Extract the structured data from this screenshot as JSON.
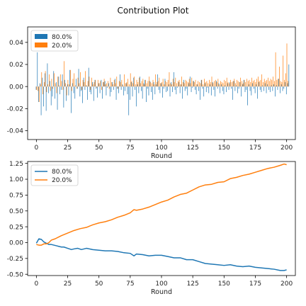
{
  "figure": {
    "title": "Contribution Plot"
  },
  "colors": {
    "series_a": "#1f77b4",
    "series_b": "#ff7f0e",
    "axis": "#000000"
  },
  "chart_data": [
    {
      "type": "bar",
      "xlabel": "Round",
      "ylabel": "",
      "xlim": [
        -7,
        207
      ],
      "ylim": [
        -0.048,
        0.054
      ],
      "xticks": [
        0,
        25,
        50,
        75,
        100,
        125,
        150,
        175,
        200
      ],
      "xtick_labels": [
        "0",
        "25",
        "50",
        "75",
        "100",
        "125",
        "150",
        "175",
        "200"
      ],
      "yticks": [
        -0.04,
        -0.02,
        0.0,
        0.02,
        0.04
      ],
      "ytick_labels": [
        "-0.04",
        "-0.02",
        "0.00",
        "0.02",
        "0.04"
      ],
      "legend": {
        "position": "top-left",
        "style": "patch"
      },
      "series": [
        {
          "name": "80.0%",
          "color": "#1f77b4",
          "values": [
            -0.003,
            0.031,
            -0.014,
            0.003,
            -0.026,
            0.008,
            -0.018,
            0.012,
            -0.022,
            0.021,
            -0.006,
            0.005,
            -0.017,
            -0.009,
            0.014,
            -0.011,
            0.004,
            -0.021,
            0.009,
            -0.007,
            -0.003,
            0.011,
            -0.019,
            0.006,
            -0.013,
            0.002,
            -0.008,
            0.015,
            -0.024,
            0.003,
            -0.006,
            -0.011,
            0.007,
            -0.002,
            0.016,
            -0.009,
            -0.004,
            -0.015,
            0.008,
            -0.003,
            0.001,
            -0.012,
            0.017,
            -0.005,
            -0.007,
            0.004,
            -0.013,
            0.006,
            -0.002,
            -0.01,
            0.003,
            -0.006,
            0.006,
            -0.011,
            0.004,
            0.005,
            -0.008,
            -0.001,
            0.003,
            -0.009,
            -0.005,
            0.004,
            -0.003,
            0.007,
            -0.012,
            -0.002,
            -0.006,
            0.011,
            -0.003,
            0.002,
            -0.008,
            -0.004,
            0.003,
            -0.007,
            -0.026,
            -0.012,
            0.004,
            -0.009,
            0.008,
            -0.003,
            -0.018,
            0.002,
            -0.006,
            0.009,
            -0.004,
            -0.011,
            0.003,
            0.006,
            -0.014,
            -0.002,
            -0.008,
            0.005,
            -0.005,
            -0.012,
            0.004,
            -0.007,
            0.002,
            0.011,
            -0.003,
            -0.006,
            0.003,
            -0.01,
            -0.002,
            0.007,
            -0.005,
            -0.004,
            0.002,
            -0.009,
            0.004,
            -0.005,
            0.013,
            -0.003,
            -0.007,
            -0.001,
            0.004,
            -0.006,
            0.002,
            -0.011,
            0.006,
            -0.004,
            -0.002,
            -0.008,
            0.003,
            0.009,
            -0.005,
            -0.001,
            0.005,
            -0.003,
            -0.007,
            0.002,
            -0.004,
            -0.012,
            0.006,
            -0.002,
            -0.009,
            0.003,
            -0.005,
            -0.001,
            -0.006,
            0.002,
            -0.008,
            0.004,
            -0.003,
            -0.009,
            0.005,
            -0.002,
            0.003,
            -0.006,
            0.002,
            -0.004,
            -0.007,
            0.001,
            -0.005,
            0.003,
            -0.003,
            0.004,
            -0.002,
            -0.012,
            0.005,
            -0.004,
            0.001,
            -0.006,
            -0.002,
            0.004,
            -0.009,
            0.002,
            0.006,
            -0.005,
            -0.003,
            -0.017,
            0.002,
            -0.004,
            -0.008,
            0.003,
            -0.002,
            -0.006,
            0.002,
            -0.011,
            0.004,
            -0.003,
            -0.005,
            0.001,
            -0.004,
            0.003,
            -0.006,
            0.002,
            -0.003,
            -0.005,
            0.001,
            -0.004,
            0.002,
            -0.009,
            0.001,
            -0.003,
            0.007,
            -0.006,
            0.002,
            -0.004,
            -0.002,
            0.004,
            -0.007,
            0.003,
            0.02
          ]
        },
        {
          "name": "20.0%",
          "color": "#ff7f0e",
          "values": [
            -0.003,
            -0.004,
            -0.014,
            0.002,
            0.013,
            -0.007,
            0.004,
            0.014,
            -0.005,
            0.002,
            0.011,
            -0.004,
            0.007,
            -0.002,
            0.012,
            0.003,
            -0.006,
            0.009,
            0.001,
            0.011,
            0.005,
            -0.003,
            0.023,
            0.003,
            -0.008,
            0.006,
            0.002,
            0.015,
            -0.004,
            0.007,
            0.012,
            0.001,
            -0.002,
            0.008,
            0.003,
            0.013,
            -0.003,
            0.006,
            0.004,
            0.014,
            0.001,
            0.005,
            0.009,
            -0.003,
            0.008,
            0.002,
            0.004,
            0.006,
            -0.001,
            0.006,
            0.003,
            0.005,
            -0.003,
            0.004,
            0.007,
            0.002,
            0.003,
            0.005,
            -0.002,
            0.008,
            0.004,
            0.002,
            0.006,
            0.003,
            0.009,
            -0.002,
            0.005,
            0.004,
            0.006,
            0.001,
            0.011,
            0.003,
            0.004,
            0.007,
            0.002,
            0.012,
            0.005,
            0.003,
            0.009,
            0.002,
            0.006,
            0.004,
            0.008,
            0.003,
            0.005,
            0.007,
            0.002,
            0.006,
            0.003,
            0.005,
            0.009,
            0.004,
            0.003,
            0.006,
            0.002,
            0.011,
            0.004,
            0.005,
            0.008,
            0.003,
            0.004,
            0.007,
            0.002,
            0.005,
            0.004,
            0.006,
            0.013,
            0.003,
            0.002,
            0.007,
            0.004,
            0.008,
            0.003,
            0.005,
            0.006,
            0.002,
            0.009,
            0.004,
            0.003,
            0.006,
            0.005,
            0.004,
            0.007,
            0.003,
            0.008,
            0.005,
            0.004,
            0.006,
            0.002,
            0.005,
            0.004,
            0.003,
            0.006,
            0.002,
            0.007,
            0.004,
            0.005,
            0.003,
            0.006,
            0.004,
            0.009,
            0.003,
            0.005,
            0.006,
            0.004,
            0.007,
            0.002,
            0.005,
            0.004,
            0.003,
            0.006,
            0.005,
            0.008,
            0.004,
            0.003,
            0.006,
            0.004,
            0.005,
            0.007,
            0.003,
            0.006,
            0.005,
            0.004,
            0.008,
            0.005,
            0.003,
            0.006,
            0.004,
            0.007,
            0.005,
            0.006,
            0.004,
            0.008,
            0.005,
            0.006,
            0.004,
            0.007,
            0.009,
            0.005,
            0.006,
            0.011,
            0.004,
            0.007,
            0.005,
            0.006,
            0.008,
            0.005,
            0.007,
            0.006,
            0.009,
            0.005,
            0.031,
            0.006,
            0.007,
            0.018,
            0.005,
            0.004,
            0.028,
            0.006,
            0.012,
            0.039,
            0.005
          ]
        }
      ]
    },
    {
      "type": "line",
      "xlabel": "Round",
      "ylabel": "",
      "xlim": [
        -7,
        207
      ],
      "ylim": [
        -0.52,
        1.28
      ],
      "xticks": [
        0,
        25,
        50,
        75,
        100,
        125,
        150,
        175,
        200
      ],
      "xtick_labels": [
        "0",
        "25",
        "50",
        "75",
        "100",
        "125",
        "150",
        "175",
        "200"
      ],
      "yticks": [
        -0.5,
        -0.25,
        0.0,
        0.25,
        0.5,
        0.75,
        1.0,
        1.25
      ],
      "ytick_labels": [
        "-0.50",
        "-0.25",
        "0.00",
        "0.25",
        "0.50",
        "0.75",
        "1.00",
        "1.25"
      ],
      "legend": {
        "position": "top-left",
        "style": "line"
      },
      "series": [
        {
          "name": "80.0%",
          "color": "#1f77b4",
          "x": [
            0,
            2,
            4,
            6,
            8,
            10,
            12,
            14,
            16,
            18,
            20,
            22,
            25,
            28,
            30,
            33,
            36,
            40,
            45,
            50,
            55,
            60,
            65,
            70,
            75,
            78,
            80,
            85,
            90,
            95,
            100,
            105,
            110,
            115,
            120,
            125,
            130,
            135,
            140,
            145,
            150,
            155,
            160,
            165,
            170,
            175,
            180,
            185,
            190,
            195,
            198,
            200
          ],
          "values": [
            -0.01,
            0.06,
            0.05,
            0.01,
            -0.01,
            -0.03,
            -0.03,
            -0.04,
            -0.05,
            -0.06,
            -0.07,
            -0.07,
            -0.09,
            -0.11,
            -0.1,
            -0.09,
            -0.11,
            -0.09,
            -0.11,
            -0.12,
            -0.13,
            -0.13,
            -0.14,
            -0.16,
            -0.17,
            -0.21,
            -0.18,
            -0.19,
            -0.21,
            -0.2,
            -0.2,
            -0.22,
            -0.24,
            -0.24,
            -0.27,
            -0.27,
            -0.3,
            -0.33,
            -0.34,
            -0.35,
            -0.36,
            -0.35,
            -0.37,
            -0.38,
            -0.37,
            -0.39,
            -0.4,
            -0.41,
            -0.42,
            -0.44,
            -0.44,
            -0.43
          ]
        },
        {
          "name": "20.0%",
          "color": "#ff7f0e",
          "x": [
            0,
            2,
            4,
            6,
            8,
            10,
            12,
            15,
            18,
            20,
            25,
            30,
            35,
            40,
            45,
            50,
            55,
            60,
            65,
            70,
            75,
            78,
            80,
            85,
            90,
            95,
            100,
            105,
            110,
            115,
            120,
            125,
            130,
            135,
            140,
            145,
            150,
            155,
            160,
            165,
            170,
            175,
            180,
            185,
            190,
            195,
            198,
            200
          ],
          "values": [
            -0.03,
            -0.04,
            -0.04,
            -0.02,
            -0.02,
            0.0,
            0.04,
            0.06,
            0.09,
            0.11,
            0.15,
            0.19,
            0.22,
            0.24,
            0.28,
            0.31,
            0.33,
            0.36,
            0.4,
            0.43,
            0.47,
            0.52,
            0.51,
            0.53,
            0.56,
            0.6,
            0.64,
            0.67,
            0.72,
            0.76,
            0.78,
            0.83,
            0.88,
            0.91,
            0.92,
            0.95,
            0.96,
            1.01,
            1.03,
            1.06,
            1.08,
            1.11,
            1.14,
            1.17,
            1.19,
            1.22,
            1.24,
            1.23
          ]
        }
      ]
    }
  ]
}
